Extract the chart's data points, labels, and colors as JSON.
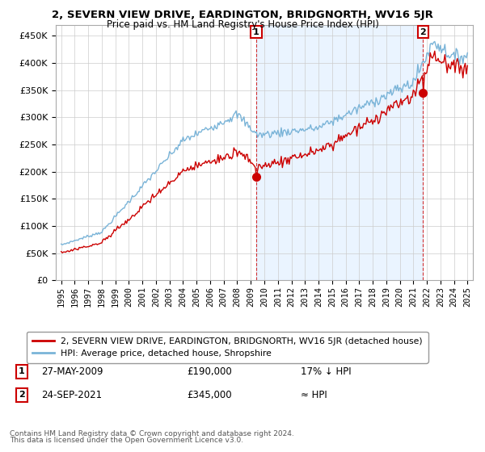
{
  "title": "2, SEVERN VIEW DRIVE, EARDINGTON, BRIDGNORTH, WV16 5JR",
  "subtitle": "Price paid vs. HM Land Registry's House Price Index (HPI)",
  "hpi_label": "HPI: Average price, detached house, Shropshire",
  "property_label": "2, SEVERN VIEW DRIVE, EARDINGTON, BRIDGNORTH, WV16 5JR (detached house)",
  "transaction1": {
    "date": "27-MAY-2009",
    "price": 190000,
    "label": "17% ↓ HPI",
    "num": "1"
  },
  "transaction2": {
    "date": "24-SEP-2021",
    "price": 345000,
    "label": "≈ HPI",
    "num": "2"
  },
  "hpi_color": "#7ab4d8",
  "property_color": "#cc0000",
  "fill_color": "#ddeeff",
  "background_color": "#ffffff",
  "grid_color": "#cccccc",
  "ylim": [
    0,
    470000
  ],
  "yticks": [
    0,
    50000,
    100000,
    150000,
    200000,
    250000,
    300000,
    350000,
    400000,
    450000
  ],
  "footnote1": "Contains HM Land Registry data © Crown copyright and database right 2024.",
  "footnote2": "This data is licensed under the Open Government Licence v3.0.",
  "t1_year": 2009.403,
  "t2_year": 2021.729
}
